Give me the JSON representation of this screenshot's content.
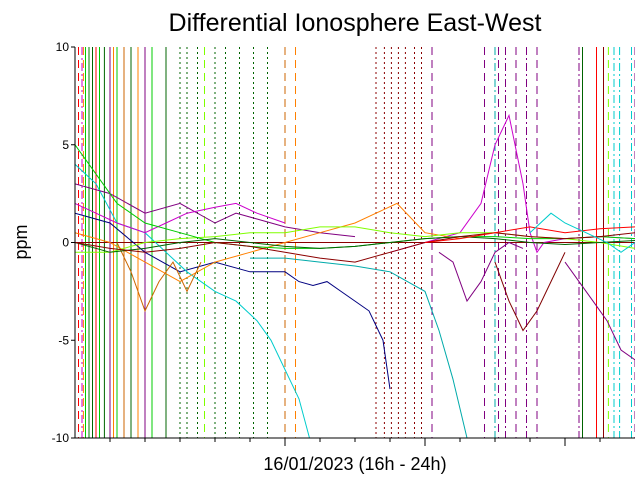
{
  "chart_data": {
    "type": "line",
    "title": "Differential Ionosphere East-West",
    "xlabel": "16/01/2023 (16h - 24h)",
    "ylabel": "ppm",
    "ylim": [
      -10,
      10
    ],
    "xlim": [
      16,
      24
    ],
    "y_ticks": [
      10,
      5,
      0,
      -5,
      -10
    ],
    "y_tick_labels": [
      "10",
      "5",
      "0",
      "-5",
      "-10"
    ],
    "x_major_ticks": [
      19,
      21,
      23
    ],
    "x_minor_ticks": [
      16.5,
      17,
      17.5,
      18,
      18.5,
      19.5,
      20,
      20.5,
      21.5,
      22,
      22.5,
      23.5
    ],
    "grid": false,
    "legend": "none",
    "zero_line_color": "#8b0000",
    "series": [
      {
        "color": "#000080",
        "style": "solid",
        "x": [
          16.0,
          16.5,
          17.0,
          17.5,
          18.0,
          18.5,
          19.0,
          19.2,
          19.4,
          19.6,
          19.8,
          20.0,
          20.2,
          20.4,
          20.5
        ],
        "values": [
          1.5,
          1.0,
          -0.5,
          -1.5,
          -1.0,
          -1.5,
          -1.5,
          -2.0,
          -2.2,
          -2.0,
          -2.5,
          -3.0,
          -3.5,
          -5.0,
          -7.5
        ]
      },
      {
        "color": "#00cccc",
        "style": "solid",
        "x": [
          16.0,
          16.3,
          16.6,
          17.0,
          17.3,
          17.6,
          18.0,
          18.3,
          18.6,
          18.8,
          19.0,
          19.2,
          19.35
        ],
        "values": [
          4.0,
          3.0,
          1.0,
          0.5,
          -0.5,
          -1.5,
          -2.5,
          -3.0,
          -4.0,
          -5.0,
          -6.5,
          -8.0,
          -10.0
        ]
      },
      {
        "color": "#00aaaa",
        "style": "solid",
        "x": [
          18.5,
          19.0,
          19.5,
          20.0,
          20.5,
          21.0,
          21.2,
          21.4,
          21.6
        ],
        "values": [
          -0.8,
          -0.8,
          -1.0,
          -1.2,
          -1.5,
          -2.5,
          -4.5,
          -7.0,
          -10.0
        ]
      },
      {
        "color": "#800080",
        "style": "solid",
        "x": [
          16.0,
          16.5,
          17.0,
          17.5,
          18.0,
          18.3,
          18.6,
          19.0,
          19.5,
          20.0
        ],
        "values": [
          3.0,
          2.5,
          1.5,
          2.0,
          1.0,
          1.5,
          1.2,
          0.8,
          0.5,
          0.3
        ]
      },
      {
        "color": "#cc00cc",
        "style": "solid",
        "x": [
          16.0,
          16.3,
          16.6,
          17.0,
          17.3,
          17.6,
          18.0,
          18.3,
          18.6,
          19.0
        ],
        "values": [
          2.0,
          1.5,
          1.0,
          0.5,
          1.0,
          1.5,
          1.8,
          2.0,
          1.5,
          1.0
        ]
      },
      {
        "color": "#cc00cc",
        "style": "solid",
        "x": [
          20.5,
          21.0,
          21.5,
          21.8,
          22.0,
          22.2,
          22.4,
          22.5,
          22.6,
          22.7,
          23.0,
          23.5,
          24.0
        ],
        "values": [
          -0.5,
          0.0,
          0.5,
          2.0,
          5.0,
          6.5,
          3.0,
          0.5,
          -0.5,
          0.0,
          0.2,
          0.3,
          0.2
        ]
      },
      {
        "color": "#ff8000",
        "style": "solid",
        "x": [
          16.0,
          16.5,
          17.0,
          17.5,
          18.0,
          18.5,
          19.0,
          19.5,
          20.0,
          20.3,
          20.6,
          21.0,
          21.5
        ],
        "values": [
          0.5,
          0.0,
          -1.0,
          -2.0,
          -1.0,
          -0.5,
          0.0,
          0.5,
          1.0,
          1.5,
          2.0,
          0.5,
          0.2
        ]
      },
      {
        "color": "#cc6600",
        "style": "solid",
        "x": [
          16.6,
          16.8,
          17.0,
          17.2,
          17.4,
          17.6,
          17.8
        ],
        "values": [
          0.0,
          -1.5,
          -3.5,
          -2.0,
          -1.0,
          -2.5,
          -1.0
        ]
      },
      {
        "color": "#80ff00",
        "style": "solid",
        "x": [
          16.0,
          16.5,
          17.0,
          17.5,
          18.0,
          18.5,
          19.0,
          19.5,
          20.0,
          20.5,
          21.0,
          21.5,
          22.0,
          22.5,
          23.0,
          23.5,
          24.0
        ],
        "values": [
          -0.5,
          -0.5,
          0.0,
          0.2,
          0.3,
          0.5,
          0.5,
          0.8,
          0.8,
          0.5,
          0.3,
          0.5,
          0.5,
          0.3,
          0.2,
          0.0,
          -0.3
        ]
      },
      {
        "color": "#00cc00",
        "style": "solid",
        "x": [
          16.0,
          16.3,
          16.6,
          17.0,
          17.5,
          18.0,
          18.5,
          19.0,
          19.5,
          20.0,
          20.5,
          21.0,
          21.5,
          22.0,
          22.5,
          23.0,
          23.5,
          24.0
        ],
        "values": [
          5.0,
          3.5,
          2.0,
          1.0,
          0.5,
          0.0,
          -0.2,
          -0.3,
          -0.3,
          -0.2,
          0.0,
          0.2,
          0.3,
          0.3,
          0.2,
          0.2,
          0.3,
          0.2
        ]
      },
      {
        "color": "#006400",
        "style": "solid",
        "x": [
          16.0,
          16.5,
          17.0,
          17.5,
          18.0,
          18.5,
          19.0,
          19.5,
          20.0,
          20.5,
          21.0,
          21.5,
          22.0,
          22.5,
          23.0,
          23.5,
          24.0
        ],
        "values": [
          0.0,
          -0.5,
          -0.3,
          0.0,
          0.2,
          0.0,
          -0.2,
          -0.3,
          -0.2,
          0.0,
          0.2,
          0.3,
          0.2,
          0.0,
          -0.1,
          0.0,
          0.1
        ]
      },
      {
        "color": "#8b0000",
        "style": "solid",
        "x": [
          16.0,
          16.5,
          17.0,
          17.5,
          18.0,
          18.5,
          19.0,
          19.5,
          20.0,
          20.5,
          21.0,
          21.5,
          22.0,
          22.5,
          23.0,
          23.5,
          24.0
        ],
        "values": [
          0.0,
          -0.3,
          -0.5,
          -0.3,
          0.0,
          -0.2,
          -0.5,
          -0.8,
          -1.0,
          -0.5,
          0.0,
          0.3,
          0.5,
          0.3,
          0.2,
          0.3,
          0.5
        ]
      },
      {
        "color": "#ff0000",
        "style": "solid",
        "x": [
          21.0,
          21.5,
          22.0,
          22.5,
          23.0,
          23.5,
          24.0
        ],
        "values": [
          0.0,
          0.2,
          0.5,
          0.8,
          0.5,
          0.7,
          0.8
        ]
      },
      {
        "color": "#00cccc",
        "style": "solid",
        "x": [
          22.5,
          22.8,
          23.0,
          23.3,
          23.6,
          23.8,
          24.0
        ],
        "values": [
          0.5,
          1.5,
          1.0,
          0.5,
          0.0,
          -0.5,
          0.0
        ]
      },
      {
        "color": "#800080",
        "style": "solid",
        "x": [
          21.2,
          21.4,
          21.6,
          21.8,
          22.0,
          22.2,
          22.4
        ],
        "values": [
          -0.5,
          -1.0,
          -3.0,
          -2.0,
          -0.5,
          0.0,
          -0.3
        ]
      },
      {
        "color": "#800000",
        "style": "solid",
        "x": [
          22.0,
          22.2,
          22.4,
          22.6,
          22.8,
          23.0
        ],
        "values": [
          -1.0,
          -3.0,
          -4.5,
          -3.5,
          -2.0,
          -0.5
        ]
      },
      {
        "color": "#800080",
        "style": "solid",
        "x": [
          23.0,
          23.2,
          23.4,
          23.6,
          23.8,
          24.0
        ],
        "values": [
          -1.0,
          -2.0,
          -3.0,
          -4.0,
          -5.5,
          -6.0
        ]
      }
    ],
    "spikes": [
      {
        "x": 16.05,
        "color": "#ff0000",
        "style": "dashed"
      },
      {
        "x": 16.1,
        "color": "#cc00cc",
        "style": "dashdot"
      },
      {
        "x": 16.12,
        "color": "#ff8000",
        "style": "dashed"
      },
      {
        "x": 16.15,
        "color": "#00cc00",
        "style": "solid"
      },
      {
        "x": 16.2,
        "color": "#008000",
        "style": "solid"
      },
      {
        "x": 16.25,
        "color": "#006400",
        "style": "solid"
      },
      {
        "x": 16.3,
        "color": "#ff0000",
        "style": "solid"
      },
      {
        "x": 16.35,
        "color": "#00cc00",
        "style": "solid"
      },
      {
        "x": 16.42,
        "color": "#006400",
        "style": "solid"
      },
      {
        "x": 16.5,
        "color": "#800080",
        "style": "solid"
      },
      {
        "x": 16.55,
        "color": "#ff8000",
        "style": "solid"
      },
      {
        "x": 16.6,
        "color": "#00cc00",
        "style": "solid"
      },
      {
        "x": 16.7,
        "color": "#cc6600",
        "style": "solid"
      },
      {
        "x": 16.8,
        "color": "#006400",
        "style": "solid"
      },
      {
        "x": 16.9,
        "color": "#ff8000",
        "style": "solid"
      },
      {
        "x": 17.0,
        "color": "#800080",
        "style": "solid"
      },
      {
        "x": 17.1,
        "color": "#00cc00",
        "style": "solid"
      },
      {
        "x": 17.3,
        "color": "#006400",
        "style": "solid"
      },
      {
        "x": 17.5,
        "color": "#006400",
        "style": "dotted"
      },
      {
        "x": 17.6,
        "color": "#006400",
        "style": "dotted"
      },
      {
        "x": 17.75,
        "color": "#006400",
        "style": "dotted"
      },
      {
        "x": 17.85,
        "color": "#80ff00",
        "style": "dashed"
      },
      {
        "x": 18.0,
        "color": "#006400",
        "style": "dotted"
      },
      {
        "x": 18.15,
        "color": "#006400",
        "style": "dotted"
      },
      {
        "x": 18.35,
        "color": "#006400",
        "style": "dotted"
      },
      {
        "x": 18.55,
        "color": "#006400",
        "style": "dotted"
      },
      {
        "x": 18.75,
        "color": "#006400",
        "style": "dotted"
      },
      {
        "x": 19.0,
        "color": "#cc6600",
        "style": "dashed"
      },
      {
        "x": 19.15,
        "color": "#ff8000",
        "style": "dashed"
      },
      {
        "x": 20.3,
        "color": "#8b0000",
        "style": "dotted"
      },
      {
        "x": 20.42,
        "color": "#8b0000",
        "style": "dotted"
      },
      {
        "x": 20.52,
        "color": "#8b0000",
        "style": "dotted"
      },
      {
        "x": 20.62,
        "color": "#8b0000",
        "style": "dotted"
      },
      {
        "x": 20.72,
        "color": "#8b0000",
        "style": "dotted"
      },
      {
        "x": 20.85,
        "color": "#8b0000",
        "style": "dotted"
      },
      {
        "x": 20.95,
        "color": "#8b0000",
        "style": "dotted"
      },
      {
        "x": 21.1,
        "color": "#800080",
        "style": "dashed"
      },
      {
        "x": 21.85,
        "color": "#800080",
        "style": "dashed"
      },
      {
        "x": 22.0,
        "color": "#00aaaa",
        "style": "dashdot"
      },
      {
        "x": 22.05,
        "color": "#800080",
        "style": "dashed"
      },
      {
        "x": 22.15,
        "color": "#800080",
        "style": "dashdot"
      },
      {
        "x": 22.3,
        "color": "#800080",
        "style": "dashed"
      },
      {
        "x": 22.45,
        "color": "#800080",
        "style": "dashdot"
      },
      {
        "x": 22.6,
        "color": "#800080",
        "style": "dashed"
      },
      {
        "x": 23.2,
        "color": "#800080",
        "style": "dashdot"
      },
      {
        "x": 23.25,
        "color": "#006400",
        "style": "solid"
      },
      {
        "x": 23.45,
        "color": "#ff0000",
        "style": "solid"
      },
      {
        "x": 23.55,
        "color": "#8b0000",
        "style": "solid"
      },
      {
        "x": 23.62,
        "color": "#80ff00",
        "style": "dashed"
      },
      {
        "x": 23.7,
        "color": "#00cccc",
        "style": "dashdot"
      },
      {
        "x": 23.78,
        "color": "#00cccc",
        "style": "dashdot"
      },
      {
        "x": 23.95,
        "color": "#00cccc",
        "style": "dashdot"
      },
      {
        "x": 24.0,
        "color": "#800080",
        "style": "dashed"
      }
    ]
  }
}
